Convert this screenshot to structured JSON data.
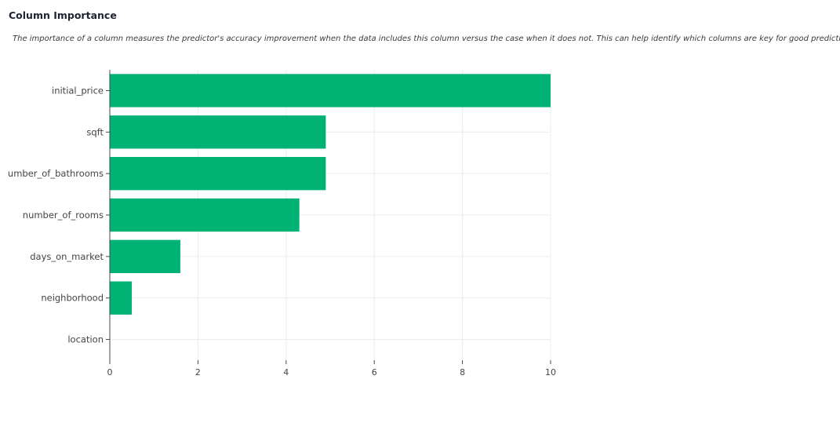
{
  "header": {
    "title": "Column Importance",
    "description": "The importance of a column measures the predictor's accuracy improvement when the data includes this column versus the case when it does not. This can help identify which columns are key for good predictions"
  },
  "colors": {
    "bar": "#00b274",
    "grid": "#e9ecef",
    "axis": "#444444"
  },
  "chart_data": {
    "type": "bar",
    "orientation": "horizontal",
    "categories": [
      "initial_price",
      "sqft",
      "umber_of_bathrooms",
      "number_of_rooms",
      "days_on_market",
      "neighborhood",
      "location"
    ],
    "values": [
      10,
      4.9,
      4.9,
      4.3,
      1.6,
      0.5,
      0
    ],
    "xlim": [
      0,
      10
    ],
    "xticks": [
      0,
      2,
      4,
      6,
      8,
      10
    ],
    "grid": true,
    "title": "",
    "xlabel": "",
    "ylabel": ""
  }
}
